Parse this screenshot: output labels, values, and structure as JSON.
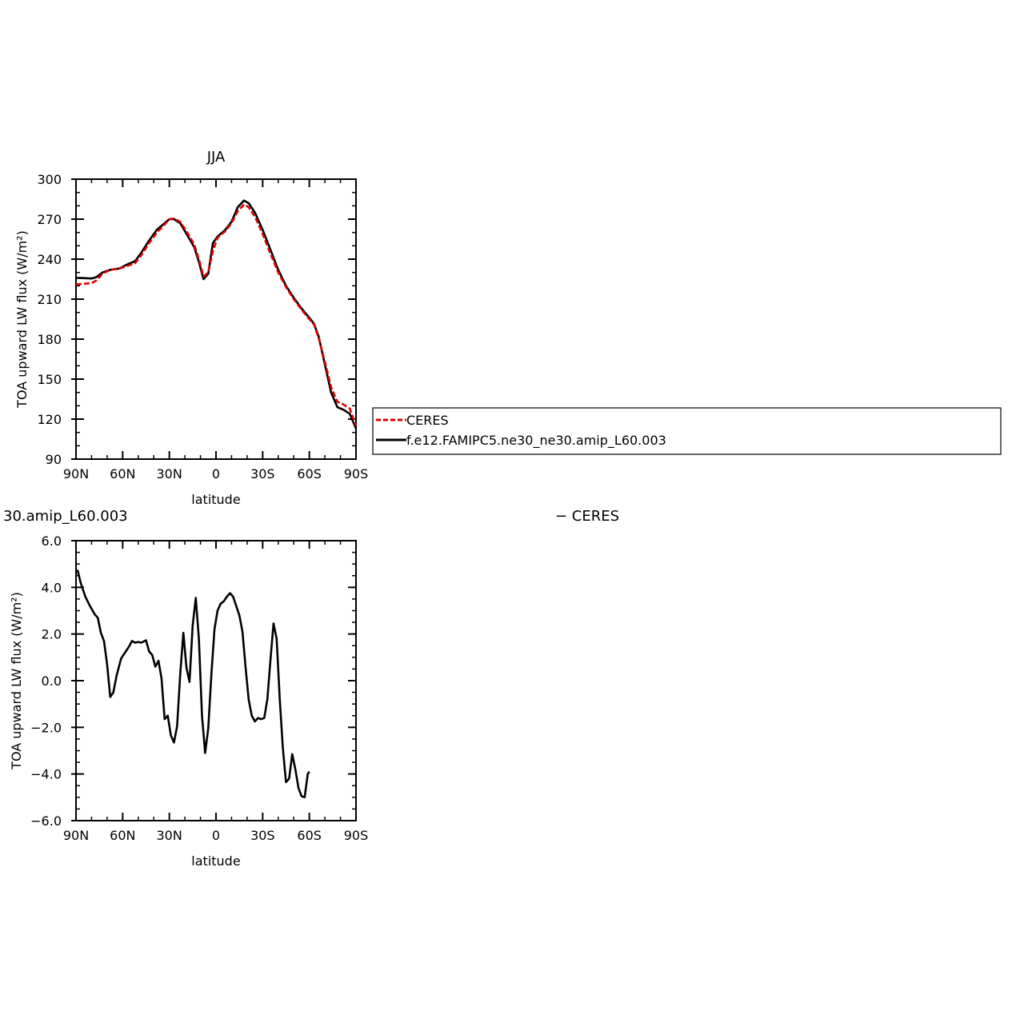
{
  "chart_data": [
    {
      "type": "line",
      "title": "JJA",
      "xlabel": "latitude",
      "ylabel": "TOA upward LW flux (W/m²)",
      "xlim": [
        -90,
        90
      ],
      "ylim": [
        90,
        300
      ],
      "x_ticks": [
        -90,
        -60,
        -30,
        0,
        30,
        60,
        90
      ],
      "x_tick_labels": [
        "90N",
        "60N",
        "30N",
        "0",
        "30S",
        "60S",
        "90S"
      ],
      "y_ticks": [
        90,
        120,
        150,
        180,
        210,
        240,
        270,
        300
      ],
      "y_tick_labels": [
        "90",
        "120",
        "150",
        "180",
        "210",
        "240",
        "270",
        "300"
      ],
      "legend_position": "right-outside",
      "series": [
        {
          "name": "CERES",
          "color": "#e00000",
          "dash": "dashed",
          "points": [
            [
              -90,
              221
            ],
            [
              -85,
              221.5
            ],
            [
              -80,
              222
            ],
            [
              -77,
              224
            ],
            [
              -73,
              229
            ],
            [
              -68,
              232
            ],
            [
              -62,
              233
            ],
            [
              -58,
              234.5
            ],
            [
              -52,
              237
            ],
            [
              -48,
              243
            ],
            [
              -43,
              252
            ],
            [
              -38,
              260
            ],
            [
              -33,
              266
            ],
            [
              -30,
              270
            ],
            [
              -27,
              270.5
            ],
            [
              -23,
              268
            ],
            [
              -19,
              261
            ],
            [
              -14,
              251
            ],
            [
              -11,
              240
            ],
            [
              -8,
              227
            ],
            [
              -5,
              230
            ],
            [
              -2,
              246
            ],
            [
              1,
              256
            ],
            [
              6,
              261
            ],
            [
              10,
              267
            ],
            [
              14,
              276
            ],
            [
              18,
              281
            ],
            [
              21,
              279
            ],
            [
              25,
              272
            ],
            [
              30,
              259
            ],
            [
              35,
              244
            ],
            [
              40,
              230
            ],
            [
              45,
              219
            ],
            [
              50,
              210
            ],
            [
              55,
              202
            ],
            [
              60,
              195
            ],
            [
              63,
              191
            ],
            [
              66,
              181
            ],
            [
              70,
              163
            ],
            [
              74,
              144
            ],
            [
              78,
              133
            ],
            [
              82,
              131
            ],
            [
              86,
              128
            ],
            [
              90,
              115
            ]
          ]
        },
        {
          "name": "f.e12.FAMIPC5.ne30_ne30.amip_L60.003",
          "color": "#000000",
          "dash": "solid",
          "points": [
            [
              -90,
              226
            ],
            [
              -85,
              225.8
            ],
            [
              -80,
              225.5
            ],
            [
              -77,
              226.5
            ],
            [
              -73,
              230
            ],
            [
              -68,
              232
            ],
            [
              -62,
              233
            ],
            [
              -58,
              235.5
            ],
            [
              -52,
              238.5
            ],
            [
              -48,
              245
            ],
            [
              -43,
              254
            ],
            [
              -38,
              262
            ],
            [
              -33,
              267
            ],
            [
              -30,
              270
            ],
            [
              -27,
              270
            ],
            [
              -23,
              267
            ],
            [
              -19,
              259
            ],
            [
              -14,
              249
            ],
            [
              -11,
              238
            ],
            [
              -8,
              225
            ],
            [
              -5,
              229
            ],
            [
              -2,
              252
            ],
            [
              1,
              257
            ],
            [
              6,
              262
            ],
            [
              10,
              268
            ],
            [
              14,
              279
            ],
            [
              18,
              284
            ],
            [
              21,
              282
            ],
            [
              25,
              275
            ],
            [
              30,
              262
            ],
            [
              35,
              247
            ],
            [
              40,
              232
            ],
            [
              45,
              220
            ],
            [
              50,
              211
            ],
            [
              55,
              203
            ],
            [
              60,
              196
            ],
            [
              63,
              191.5
            ],
            [
              66,
              182
            ],
            [
              70,
              161
            ],
            [
              74,
              140
            ],
            [
              78,
              129
            ],
            [
              82,
              127
            ],
            [
              86,
              124
            ],
            [
              90,
              113
            ]
          ]
        }
      ]
    },
    {
      "type": "line",
      "title": "30.amip_L60.003",
      "title_right": "− CERES",
      "xlabel": "latitude",
      "ylabel": "TOA upward LW flux (W/m²)",
      "xlim": [
        -90,
        90
      ],
      "ylim": [
        -6,
        6
      ],
      "x_ticks": [
        -90,
        -60,
        -30,
        0,
        30,
        60,
        90
      ],
      "x_tick_labels": [
        "90N",
        "60N",
        "30N",
        "0",
        "30S",
        "60S",
        "90S"
      ],
      "y_ticks": [
        -6,
        -4,
        -2,
        0,
        2,
        4,
        6
      ],
      "y_tick_labels": [
        "−6.0",
        "−4.0",
        "−2.0",
        "0.0",
        "2.0",
        "4.0",
        "6.0"
      ],
      "series": [
        {
          "color": "#000000",
          "dash": "solid",
          "points": [
            [
              -89,
              4.75
            ],
            [
              -87,
              4.2
            ],
            [
              -84,
              3.6
            ],
            [
              -81,
              3.2
            ],
            [
              -78,
              2.85
            ],
            [
              -76,
              2.7
            ],
            [
              -74,
              2.05
            ],
            [
              -72,
              1.7
            ],
            [
              -70,
              0.7
            ],
            [
              -68,
              -0.7
            ],
            [
              -66,
              -0.5
            ],
            [
              -64,
              0.2
            ],
            [
              -61,
              0.95
            ],
            [
              -58,
              1.25
            ],
            [
              -56,
              1.45
            ],
            [
              -54,
              1.7
            ],
            [
              -52,
              1.63
            ],
            [
              -50,
              1.66
            ],
            [
              -48,
              1.63
            ],
            [
              -45,
              1.73
            ],
            [
              -43,
              1.25
            ],
            [
              -41,
              1.1
            ],
            [
              -39,
              0.6
            ],
            [
              -37,
              0.85
            ],
            [
              -35,
              0.1
            ],
            [
              -33,
              -1.65
            ],
            [
              -31,
              -1.5
            ],
            [
              -29,
              -2.35
            ],
            [
              -27,
              -2.65
            ],
            [
              -25,
              -1.95
            ],
            [
              -23,
              0.3
            ],
            [
              -21,
              2.05
            ],
            [
              -19,
              0.55
            ],
            [
              -17,
              -0.05
            ],
            [
              -15,
              2.35
            ],
            [
              -13,
              3.55
            ],
            [
              -11,
              1.8
            ],
            [
              -9,
              -1.5
            ],
            [
              -7,
              -3.1
            ],
            [
              -5,
              -2.05
            ],
            [
              -3,
              0.25
            ],
            [
              -1,
              2.2
            ],
            [
              1,
              3.0
            ],
            [
              3,
              3.3
            ],
            [
              5,
              3.4
            ],
            [
              7,
              3.6
            ],
            [
              9,
              3.75
            ],
            [
              11,
              3.6
            ],
            [
              13,
              3.2
            ],
            [
              15,
              2.8
            ],
            [
              17,
              2.1
            ],
            [
              19,
              0.6
            ],
            [
              21,
              -0.8
            ],
            [
              23,
              -1.5
            ],
            [
              25,
              -1.75
            ],
            [
              27,
              -1.6
            ],
            [
              29,
              -1.65
            ],
            [
              31,
              -1.6
            ],
            [
              33,
              -0.8
            ],
            [
              35,
              0.9
            ],
            [
              37,
              2.45
            ],
            [
              39,
              1.8
            ],
            [
              41,
              -0.8
            ],
            [
              43,
              -2.9
            ],
            [
              45,
              -4.35
            ],
            [
              47,
              -4.2
            ],
            [
              49,
              -3.15
            ],
            [
              51,
              -3.8
            ],
            [
              53,
              -4.6
            ],
            [
              55,
              -4.95
            ],
            [
              57,
              -5.0
            ],
            [
              59,
              -4.0
            ],
            [
              60,
              -3.9
            ]
          ]
        }
      ]
    }
  ],
  "legend": {
    "entries": [
      "CERES",
      "f.e12.FAMIPC5.ne30_ne30.amip_L60.003"
    ]
  }
}
